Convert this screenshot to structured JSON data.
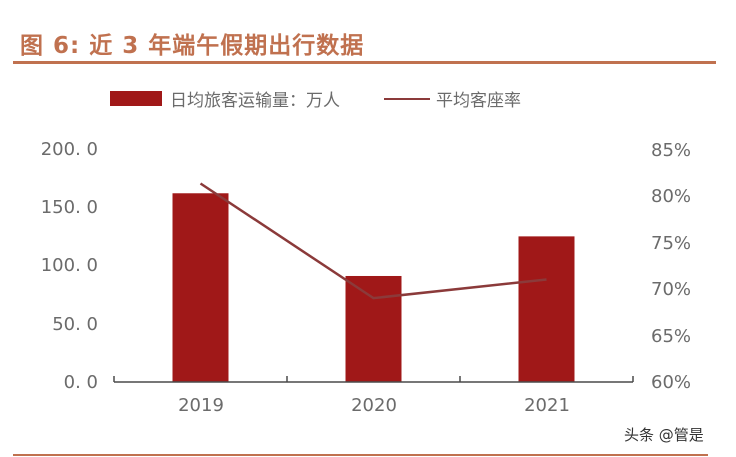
{
  "header": {
    "title": "图 6:  近 3 年端午假期出行数据"
  },
  "legend": {
    "bar_label": "日均旅客运输量：万人",
    "line_label": "平均客座率"
  },
  "axes": {
    "left_ticks": [
      "200. 0",
      "150. 0",
      "100. 0",
      "50. 0",
      "0. 0"
    ],
    "right_ticks": [
      "85%",
      "80%",
      "75%",
      "70%",
      "65%",
      "60%"
    ],
    "x_ticks": [
      "2019",
      "2020",
      "2021"
    ]
  },
  "watermark": "头条 @管是",
  "colors": {
    "bar": "#a01818",
    "line": "#8b3a3a",
    "accent": "#c0714f",
    "axis_text": "#6b6b6b"
  },
  "chart_data": {
    "type": "bar+line",
    "title": "图 6: 近 3 年端午假期出行数据",
    "categories": [
      "2019",
      "2020",
      "2021"
    ],
    "series": [
      {
        "name": "日均旅客运输量：万人",
        "type": "bar",
        "axis": "left",
        "values": [
          162,
          91,
          125
        ]
      },
      {
        "name": "平均客座率",
        "type": "line",
        "axis": "right",
        "values": [
          81.3,
          69.0,
          71.0
        ],
        "unit": "%"
      }
    ],
    "xlabel": "",
    "ylabel_left": "",
    "ylabel_right": "",
    "ylim_left": [
      0,
      200
    ],
    "ylim_right": [
      60,
      85
    ],
    "left_ticks": [
      0,
      50,
      100,
      150,
      200
    ],
    "right_ticks": [
      60,
      65,
      70,
      75,
      80,
      85
    ],
    "grid": false,
    "legend_position": "top"
  }
}
